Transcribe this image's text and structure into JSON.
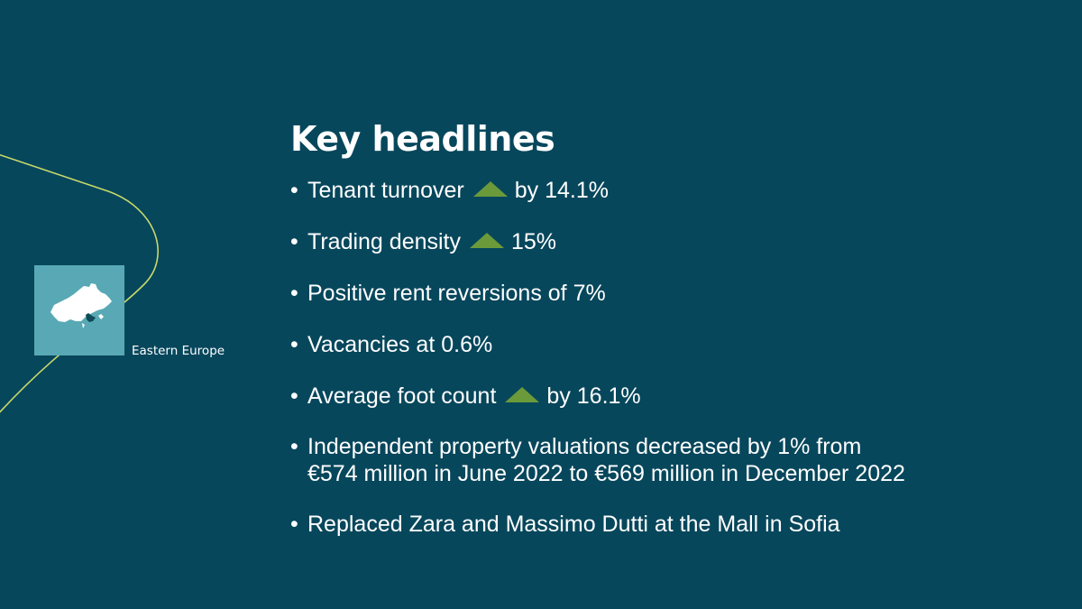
{
  "slide": {
    "title": "Key headlines",
    "region_label": "Eastern Europe",
    "region_icon": "eastern-europe-map-icon",
    "bullet_char": "•",
    "up_icon": "up-triangle-icon",
    "colors": {
      "background": "#07475c",
      "accent_line": "#c8d96a",
      "tile": "#58a9b5",
      "arrow": "#6b9a3a",
      "text": "#ffffff"
    },
    "bullets": [
      {
        "text": "Tenant turnover",
        "trend": "up",
        "after": "by 14.1%"
      },
      {
        "text": "Trading density",
        "trend": "up",
        "after": "15%"
      },
      {
        "text": "Positive rent reversions of 7%"
      },
      {
        "text": "Vacancies at 0.6%"
      },
      {
        "text": "Average foot count",
        "trend": "up",
        "after": "by 16.1%"
      },
      {
        "text": "Independent property valuations decreased by 1% from",
        "text_line2": "€574 million in June 2022 to €569 million in December 2022"
      },
      {
        "text": "Replaced Zara and Massimo Dutti at the Mall in Sofia"
      }
    ]
  }
}
